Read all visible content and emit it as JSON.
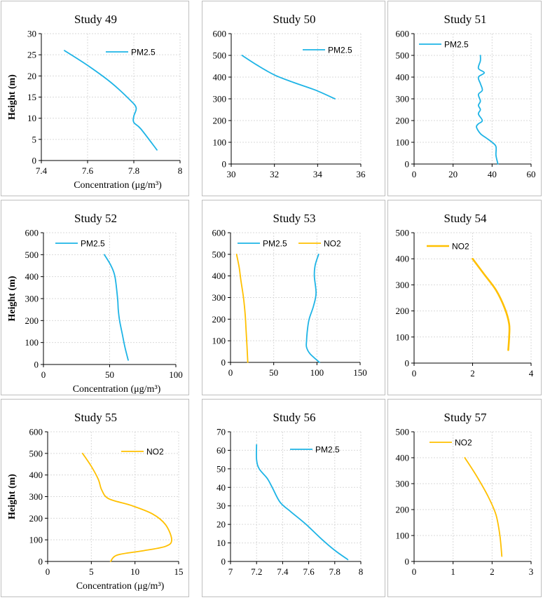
{
  "figure": {
    "panel_border_color": "#bfbfbf",
    "grid_color": "#d9d9d9",
    "pm25_color": "#1eb4e6",
    "no2_color": "#ffc000"
  },
  "chart_data": [
    {
      "type": "line",
      "title": "Study 49",
      "xlabel": "Concentration (μg/m³)",
      "ylabel": "Height (m)",
      "xlim": [
        7.4,
        8
      ],
      "xticks": [
        7.4,
        7.6,
        7.8,
        8
      ],
      "xtick_labels": [
        "7.4",
        "7.6",
        "7.8",
        "8"
      ],
      "ylim": [
        0,
        30
      ],
      "yticks": [
        0,
        5,
        10,
        15,
        20,
        25,
        30
      ],
      "ytick_labels": [
        "0",
        "5",
        "10",
        "15",
        "20",
        "25",
        "30"
      ],
      "legend_position": "top-right",
      "series": [
        {
          "name": "PM2.5",
          "color": "#1eb4e6",
          "x": [
            7.5,
            7.6,
            7.7,
            7.78,
            7.81,
            7.8,
            7.8,
            7.83,
            7.9
          ],
          "y": [
            26,
            22.5,
            18.5,
            14.5,
            12.5,
            10.5,
            9,
            7.5,
            2.5
          ]
        }
      ]
    },
    {
      "type": "line",
      "title": "Study 50",
      "xlabel": "",
      "ylabel": "",
      "xlim": [
        30,
        36
      ],
      "xticks": [
        30,
        32,
        34,
        36
      ],
      "xtick_labels": [
        "30",
        "32",
        "34",
        "36"
      ],
      "ylim": [
        0,
        600
      ],
      "yticks": [
        0,
        100,
        200,
        300,
        400,
        500,
        600
      ],
      "ytick_labels": [
        "0",
        "100",
        "200",
        "300",
        "400",
        "500",
        "600"
      ],
      "legend_position": "top-right",
      "series": [
        {
          "name": "PM2.5",
          "color": "#1eb4e6",
          "x": [
            30.5,
            31.2,
            32,
            32.9,
            33.9,
            34.8
          ],
          "y": [
            500,
            455,
            410,
            375,
            340,
            300
          ]
        }
      ]
    },
    {
      "type": "line",
      "title": "Study 51",
      "xlabel": "",
      "ylabel": "",
      "xlim": [
        0,
        60
      ],
      "xticks": [
        0,
        20,
        40,
        60
      ],
      "xtick_labels": [
        "0",
        "20",
        "40",
        "60"
      ],
      "ylim": [
        0,
        600
      ],
      "yticks": [
        0,
        100,
        200,
        300,
        400,
        500,
        600
      ],
      "ytick_labels": [
        "0",
        "100",
        "200",
        "300",
        "400",
        "500",
        "600"
      ],
      "legend_position": "top-left",
      "series": [
        {
          "name": "PM2.5",
          "color": "#1eb4e6",
          "x": [
            34,
            34,
            33,
            36,
            33,
            34,
            35,
            33,
            34,
            33,
            34,
            33,
            35,
            33,
            32,
            34,
            37,
            40,
            42,
            42,
            43
          ],
          "y": [
            500,
            475,
            440,
            420,
            400,
            370,
            340,
            320,
            290,
            270,
            250,
            230,
            200,
            185,
            170,
            140,
            120,
            100,
            80,
            40,
            0
          ]
        }
      ]
    },
    {
      "type": "line",
      "title": "Study 52",
      "xlabel": "Concentration (μg/m³)",
      "ylabel": "Height (m)",
      "xlim": [
        0,
        100
      ],
      "xticks": [
        0,
        50,
        100
      ],
      "xtick_labels": [
        "0",
        "50",
        "100"
      ],
      "ylim": [
        0,
        600
      ],
      "yticks": [
        0,
        100,
        200,
        300,
        400,
        500,
        600
      ],
      "ytick_labels": [
        "0",
        "100",
        "200",
        "300",
        "400",
        "500",
        "600"
      ],
      "legend_position": "top-left",
      "series": [
        {
          "name": "PM2.5",
          "color": "#1eb4e6",
          "x": [
            46,
            51,
            54,
            56,
            56.5,
            57.5,
            59.5,
            61.5,
            64
          ],
          "y": [
            500,
            450,
            400,
            300,
            250,
            200,
            140,
            80,
            20
          ]
        }
      ]
    },
    {
      "type": "line",
      "title": "Study 53",
      "xlabel": "",
      "ylabel": "",
      "xlim": [
        0,
        150
      ],
      "xticks": [
        0,
        50,
        100,
        150
      ],
      "xtick_labels": [
        "0",
        "50",
        "100",
        "150"
      ],
      "ylim": [
        0,
        600
      ],
      "yticks": [
        0,
        100,
        200,
        300,
        400,
        500,
        600
      ],
      "ytick_labels": [
        "0",
        "100",
        "200",
        "300",
        "400",
        "500",
        "600"
      ],
      "legend_position": "top",
      "series": [
        {
          "name": "PM2.5",
          "color": "#1eb4e6",
          "x": [
            102,
            98,
            97,
            99,
            96,
            91,
            89,
            88,
            88,
            92,
            103
          ],
          "y": [
            500,
            450,
            400,
            320,
            260,
            200,
            150,
            100,
            70,
            40,
            0
          ]
        },
        {
          "name": "NO2",
          "color": "#ffc000",
          "x": [
            7,
            10,
            12,
            15,
            17,
            18,
            19,
            20
          ],
          "y": [
            500,
            440,
            380,
            300,
            220,
            150,
            80,
            0
          ]
        }
      ]
    },
    {
      "type": "line",
      "title": "Study 54",
      "xlabel": "",
      "ylabel": "",
      "xlim": [
        0,
        4
      ],
      "xticks": [
        0,
        2,
        4
      ],
      "xtick_labels": [
        "0",
        "2",
        "4"
      ],
      "ylim": [
        0,
        500
      ],
      "yticks": [
        0,
        100,
        200,
        300,
        400,
        500
      ],
      "ytick_labels": [
        "0",
        "100",
        "200",
        "300",
        "400",
        "500"
      ],
      "legend_position": "top-left",
      "series": [
        {
          "name": "NO2",
          "color": "#ffc000",
          "x": [
            2,
            2.4,
            2.8,
            3.1,
            3.25,
            3.25,
            3.22
          ],
          "y": [
            400,
            340,
            280,
            210,
            150,
            100,
            50
          ]
        }
      ]
    },
    {
      "type": "line",
      "title": "Study 55",
      "xlabel": "Concentration (μg/m³)",
      "ylabel": "Height (m)",
      "xlim": [
        0,
        15
      ],
      "xticks": [
        0,
        5,
        10,
        15
      ],
      "xtick_labels": [
        "0",
        "5",
        "10",
        "15"
      ],
      "ylim": [
        0,
        600
      ],
      "yticks": [
        0,
        100,
        200,
        300,
        400,
        500,
        600
      ],
      "ytick_labels": [
        "0",
        "100",
        "200",
        "300",
        "400",
        "500",
        "600"
      ],
      "legend_position": "top-right",
      "series": [
        {
          "name": "NO2",
          "color": "#ffc000",
          "x": [
            4,
            5,
            5.8,
            6.2,
            7,
            9.5,
            12,
            13.5,
            14.2,
            13.5,
            11,
            8,
            7.2
          ],
          "y": [
            500,
            440,
            380,
            330,
            290,
            260,
            220,
            170,
            100,
            70,
            50,
            30,
            0
          ]
        }
      ]
    },
    {
      "type": "line",
      "title": "Study 56",
      "xlabel": "",
      "ylabel": "",
      "xlim": [
        7,
        8
      ],
      "xticks": [
        7,
        7.2,
        7.4,
        7.6,
        7.8,
        8
      ],
      "xtick_labels": [
        "7",
        "7.2",
        "7.4",
        "7.6",
        "7.8",
        "8"
      ],
      "ylim": [
        0,
        70
      ],
      "yticks": [
        0,
        10,
        20,
        30,
        40,
        50,
        60,
        70
      ],
      "ytick_labels": [
        "0",
        "10",
        "20",
        "30",
        "40",
        "50",
        "60",
        "70"
      ],
      "legend_position": "top-right",
      "series": [
        {
          "name": "PM2.5",
          "color": "#1eb4e6",
          "x": [
            7.2,
            7.2,
            7.22,
            7.28,
            7.32,
            7.38,
            7.46,
            7.58,
            7.7,
            7.8,
            7.9
          ],
          "y": [
            63,
            55,
            50,
            45,
            40,
            32,
            27,
            20,
            12,
            6,
            1
          ]
        }
      ]
    },
    {
      "type": "line",
      "title": "Study 57",
      "xlabel": "",
      "ylabel": "",
      "xlim": [
        0,
        3
      ],
      "xticks": [
        0,
        1,
        2,
        3
      ],
      "xtick_labels": [
        "0",
        "1",
        "2",
        "3"
      ],
      "ylim": [
        0,
        500
      ],
      "yticks": [
        0,
        100,
        200,
        300,
        400,
        500
      ],
      "ytick_labels": [
        "0",
        "100",
        "200",
        "300",
        "400",
        "500"
      ],
      "legend_position": "top-left",
      "series": [
        {
          "name": "NO2",
          "color": "#ffc000",
          "x": [
            1.3,
            1.6,
            1.9,
            2.1,
            2.2,
            2.25
          ],
          "y": [
            400,
            330,
            250,
            180,
            100,
            20
          ]
        }
      ]
    }
  ]
}
